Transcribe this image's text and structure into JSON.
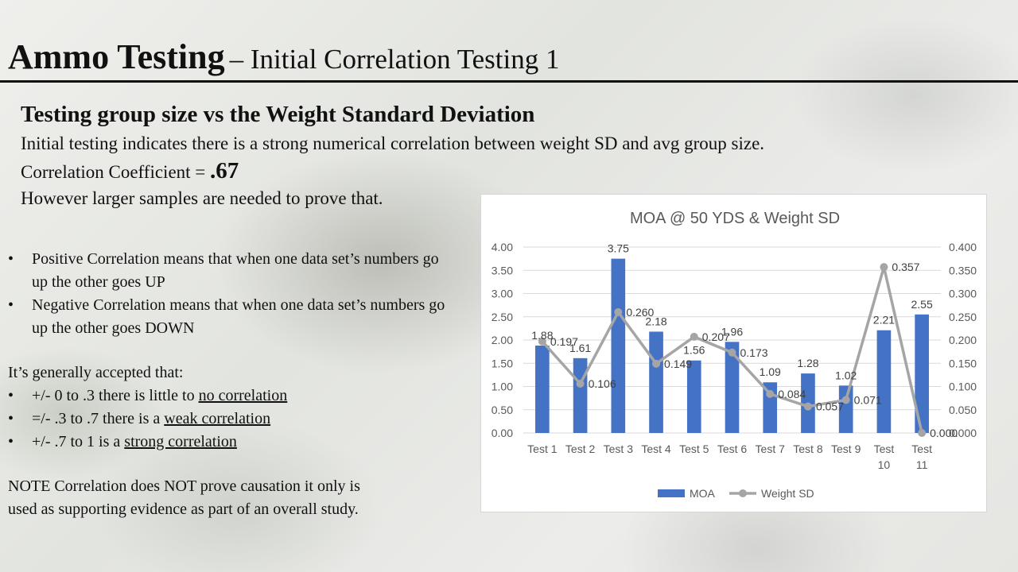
{
  "header": {
    "title_main": "Ammo Testing",
    "title_sub": "– Initial  Correlation  Testing  1"
  },
  "intro": {
    "subheading": "Testing group size vs the Weight Standard Deviation",
    "line1": "Initial testing indicates there is a strong numerical correlation between weight SD and avg group size.",
    "coef_label": "Correlation Coefficient = ",
    "coef_value": ".67",
    "line3": "However larger samples are needed to prove that."
  },
  "definitions": [
    {
      "text": "Positive Correlation means that when one data set’s numbers go up the other goes UP"
    },
    {
      "text": "Negative Correlation means that when one data set’s numbers go up the other goes DOWN"
    }
  ],
  "accepted": {
    "intro": "It’s generally accepted that:",
    "items": [
      {
        "prefix": "+/- 0 to .3 there is little to ",
        "underlined": "no correlation"
      },
      {
        "prefix": "=/- .3 to .7 there is a ",
        "underlined": "weak correlation"
      },
      {
        "prefix": "+/- .7 to 1 is a ",
        "underlined": "strong correlation"
      }
    ]
  },
  "note": {
    "line1": "NOTE Correlation does NOT prove causation it only is",
    "line2": "used as supporting evidence as part of an overall study."
  },
  "chart_data": {
    "type": "bar",
    "title": "MOA @ 50 YDS & Weight SD",
    "categories": [
      [
        "Test 1"
      ],
      [
        "Test 2"
      ],
      [
        "Test 3"
      ],
      [
        "Test 4"
      ],
      [
        "Test 5"
      ],
      [
        "Test 6"
      ],
      [
        "Test 7"
      ],
      [
        "Test 8"
      ],
      [
        "Test 9"
      ],
      [
        "Test",
        "10"
      ],
      [
        "Test",
        "11"
      ]
    ],
    "series": [
      {
        "name": "MOA",
        "type": "bar",
        "axis": "left",
        "color": "#4472C4",
        "values": [
          1.88,
          1.61,
          3.75,
          2.18,
          1.56,
          1.96,
          1.09,
          1.28,
          1.02,
          2.21,
          2.55
        ],
        "labels": [
          "1.88",
          "1.61",
          "3.75",
          "2.18",
          "1.56",
          "1.96",
          "1.09",
          "1.28",
          "1.02",
          "2.21",
          "2.55"
        ]
      },
      {
        "name": "Weight SD",
        "type": "line",
        "axis": "right",
        "color": "#A5A5A5",
        "values": [
          0.197,
          0.106,
          0.26,
          0.149,
          0.207,
          0.173,
          0.084,
          0.057,
          0.071,
          0.357,
          0.0
        ],
        "labels": [
          "0.197",
          "0.106",
          "0.260",
          "0.149",
          "0.207",
          "0.173",
          "0.084",
          "0.057",
          "0.071",
          "0.357",
          "0.000"
        ]
      }
    ],
    "y_left": {
      "min": 0,
      "max": 4,
      "ticks": [
        "0.00",
        "0.50",
        "1.00",
        "1.50",
        "2.00",
        "2.50",
        "3.00",
        "3.50",
        "4.00"
      ]
    },
    "y_right": {
      "min": 0,
      "max": 0.4,
      "ticks": [
        "0.000",
        "0.050",
        "0.100",
        "0.150",
        "0.200",
        "0.250",
        "0.300",
        "0.350",
        "0.400"
      ]
    },
    "grid": true,
    "legend_position": "bottom"
  }
}
